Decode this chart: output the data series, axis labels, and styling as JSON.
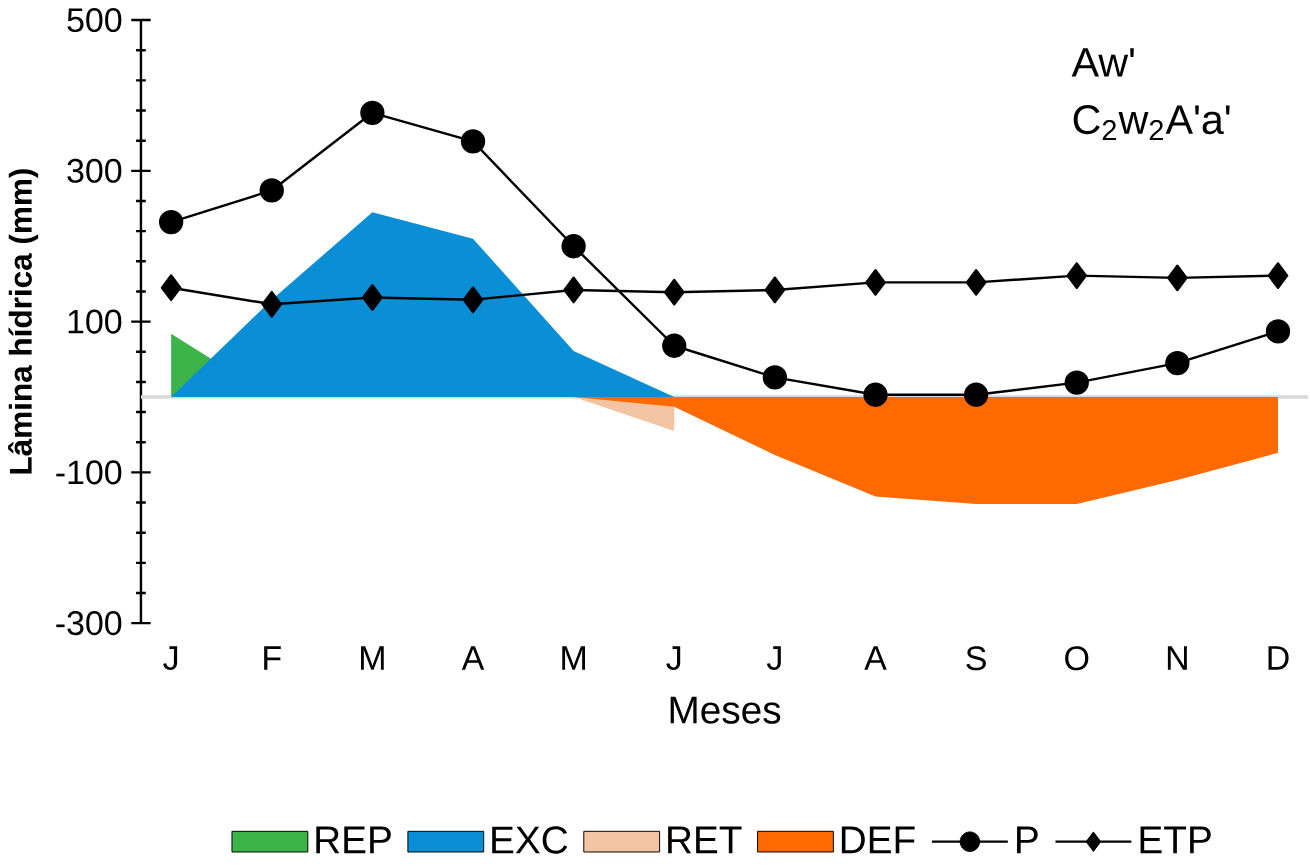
{
  "chart_data": {
    "type": "area",
    "categories": [
      "J",
      "F",
      "M",
      "A",
      "M",
      "J",
      "J",
      "A",
      "S",
      "O",
      "N",
      "D"
    ],
    "xlabel": "Meses",
    "ylabel": "Lâmina hídrica (mm)",
    "ylim": [
      -300,
      500
    ],
    "yticks": [
      -300,
      -100,
      100,
      300,
      500
    ],
    "annotations": [
      "Aw'",
      "C$_{2}$w$_{2}$A'a'"
    ],
    "ref_lines": [
      {
        "axis": "y",
        "value": 0,
        "color": "#d9d9d9"
      }
    ],
    "legend": "bottom",
    "series": [
      {
        "name": "REP",
        "color": "#3cb44a",
        "values": [
          84,
          0,
          null,
          null,
          null,
          null,
          null,
          null,
          null,
          null,
          null,
          null
        ]
      },
      {
        "name": "EXC",
        "color": "#0a8fd6",
        "values": [
          0,
          129,
          245,
          210,
          61,
          0,
          null,
          null,
          null,
          null,
          null,
          null
        ]
      },
      {
        "name": "RET",
        "color": "#f2c4a4",
        "values": [
          null,
          null,
          null,
          null,
          0,
          -45,
          null,
          null,
          null,
          null,
          null,
          null
        ]
      },
      {
        "name": "DEF",
        "color": "#ff6a00",
        "values": [
          null,
          null,
          null,
          null,
          0,
          -13,
          -77,
          -132,
          -142,
          -142,
          -110,
          -74
        ]
      },
      {
        "name": "P",
        "type": "line",
        "color": "#000000",
        "marker": "circle",
        "values": [
          232,
          274,
          377,
          339,
          200,
          68,
          26,
          3,
          3,
          19,
          45,
          87
        ]
      },
      {
        "name": "ETP",
        "type": "line",
        "color": "#000000",
        "marker": "diamond",
        "values": [
          145,
          123,
          132,
          129,
          142,
          139,
          142,
          152,
          152,
          161,
          158,
          161
        ]
      }
    ]
  }
}
